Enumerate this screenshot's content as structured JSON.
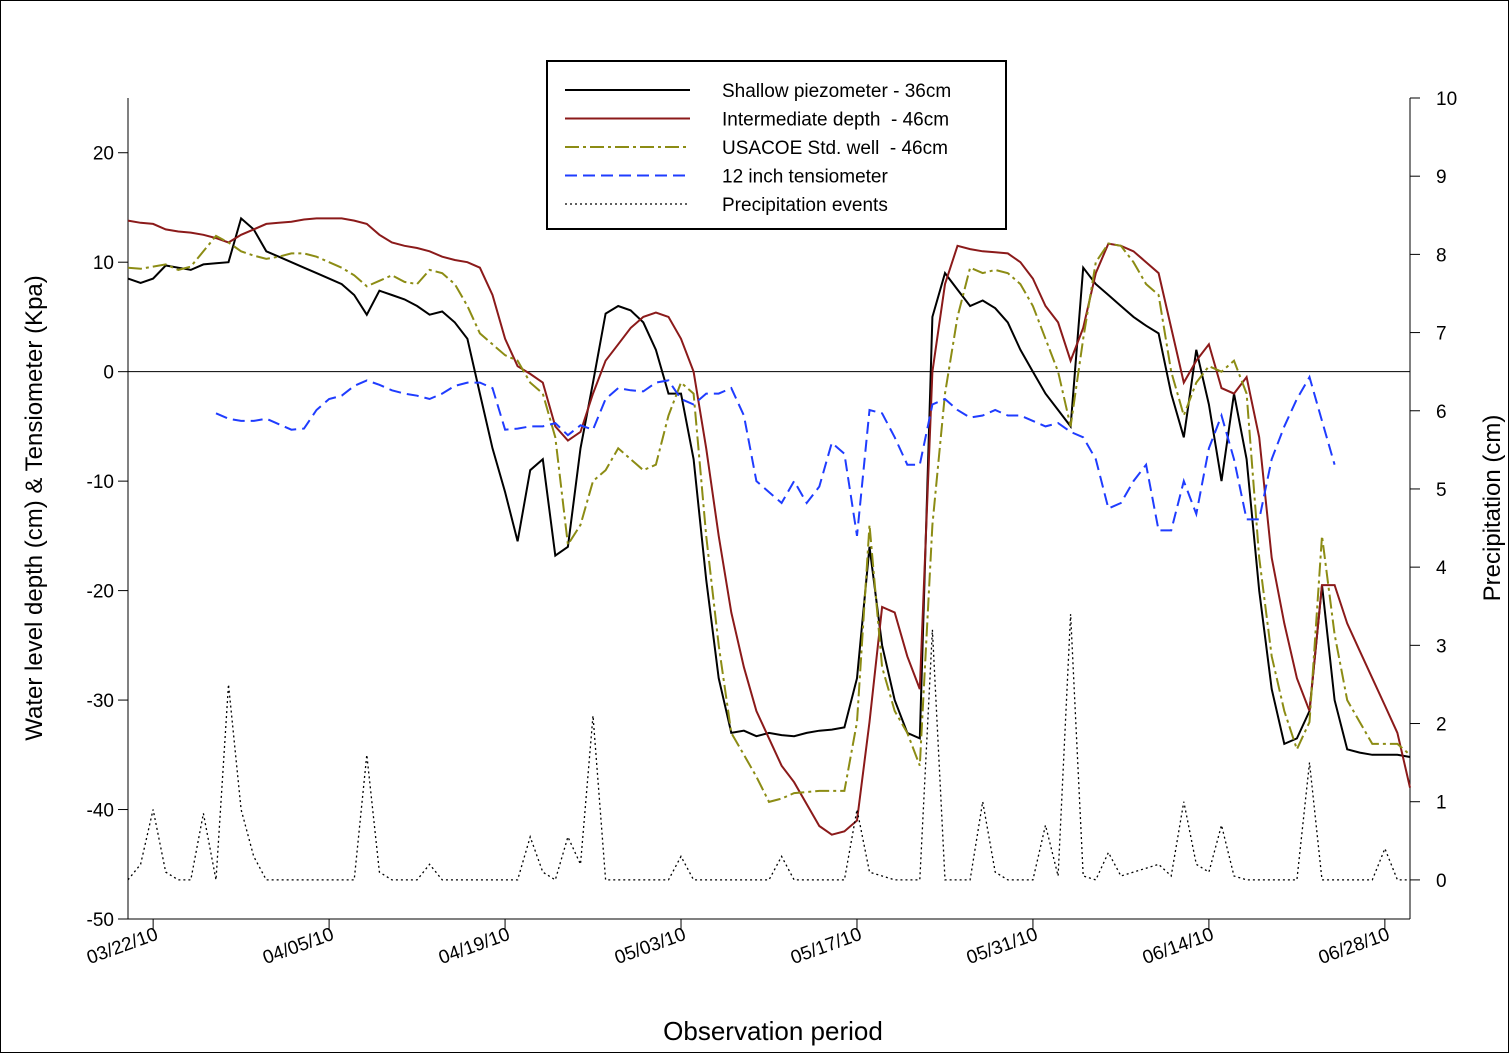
{
  "chart_data": {
    "type": "line",
    "xlabel": "Observation period",
    "ylabel": "Water level depth (cm) & Tensiometer (Kpa)",
    "y2label": "Precipitation (cm)",
    "x": [
      "03/20/10",
      "03/21/10",
      "03/22/10",
      "03/23/10",
      "03/24/10",
      "03/25/10",
      "03/26/10",
      "03/27/10",
      "03/28/10",
      "03/29/10",
      "03/30/10",
      "03/31/10",
      "04/01/10",
      "04/02/10",
      "04/03/10",
      "04/04/10",
      "04/05/10",
      "04/06/10",
      "04/07/10",
      "04/08/10",
      "04/09/10",
      "04/10/10",
      "04/11/10",
      "04/12/10",
      "04/13/10",
      "04/14/10",
      "04/15/10",
      "04/16/10",
      "04/17/10",
      "04/18/10",
      "04/19/10",
      "04/20/10",
      "04/21/10",
      "04/22/10",
      "04/23/10",
      "04/24/10",
      "04/25/10",
      "04/26/10",
      "04/27/10",
      "04/28/10",
      "04/29/10",
      "04/30/10",
      "05/01/10",
      "05/02/10",
      "05/03/10",
      "05/04/10",
      "05/05/10",
      "05/06/10",
      "05/07/10",
      "05/08/10",
      "05/09/10",
      "05/10/10",
      "05/11/10",
      "05/12/10",
      "05/13/10",
      "05/14/10",
      "05/15/10",
      "05/16/10",
      "05/17/10",
      "05/18/10",
      "05/19/10",
      "05/20/10",
      "05/21/10",
      "05/22/10",
      "05/23/10",
      "05/24/10",
      "05/25/10",
      "05/26/10",
      "05/27/10",
      "05/28/10",
      "05/29/10",
      "05/30/10",
      "05/31/10",
      "06/01/10",
      "06/02/10",
      "06/03/10",
      "06/04/10",
      "06/05/10",
      "06/06/10",
      "06/07/10",
      "06/08/10",
      "06/09/10",
      "06/10/10",
      "06/11/10",
      "06/12/10",
      "06/13/10",
      "06/14/10",
      "06/15/10",
      "06/16/10",
      "06/17/10",
      "06/18/10",
      "06/19/10",
      "06/20/10",
      "06/21/10",
      "06/22/10",
      "06/23/10",
      "06/24/10",
      "06/25/10",
      "06/26/10",
      "06/27/10",
      "06/28/10",
      "06/29/10",
      "06/30/10"
    ],
    "xlim": [
      "03/20/10",
      "06/30/10"
    ],
    "xticks": [
      "03/22/10",
      "04/05/10",
      "04/19/10",
      "05/03/10",
      "05/17/10",
      "05/31/10",
      "06/14/10",
      "06/28/10"
    ],
    "ylim": [
      -50,
      25
    ],
    "yticks": [
      -50,
      -40,
      -30,
      -20,
      -10,
      0,
      10,
      20
    ],
    "y2lim": [
      -0.5,
      10
    ],
    "y2ticks": [
      0,
      1,
      2,
      3,
      4,
      5,
      6,
      7,
      8,
      9,
      10
    ],
    "reference_line": 0,
    "series": [
      {
        "name": "Shallow piezometer - 36cm",
        "color": "#000000",
        "style": "solid",
        "values": [
          8.5,
          8.1,
          8.5,
          9.7,
          9.5,
          9.3,
          9.8,
          9.9,
          10,
          14,
          13,
          11,
          10.5,
          10,
          9.5,
          9,
          8.5,
          8,
          7,
          5.2,
          7.4,
          7,
          6.6,
          6,
          5.2,
          5.5,
          4.5,
          3,
          -2,
          -7,
          -11,
          -15.5,
          -9,
          -8,
          -16.8,
          -16,
          -7,
          -1,
          5.3,
          6,
          5.6,
          4.5,
          2,
          -2,
          -2,
          -8,
          -19,
          -28,
          -33,
          -32.8,
          -33.3,
          -33,
          -33.2,
          -33.3,
          -33,
          -32.8,
          -32.7,
          -32.5,
          -28,
          -16,
          -25,
          -30,
          -33,
          -33.5,
          5,
          9,
          7.5,
          6,
          6.5,
          5.8,
          4.5,
          2,
          0,
          -2,
          -3.5,
          -5,
          9.5,
          8,
          7,
          6,
          5,
          4.2,
          3.5,
          -2,
          -6,
          2,
          -3,
          -10,
          -2,
          -8,
          -20,
          -29,
          -34,
          -33.5,
          -31,
          -19.5,
          -30,
          -34.5,
          -34.8,
          -35,
          -35,
          -35,
          -35.2
        ]
      },
      {
        "name": "Intermediate depth  - 46cm",
        "color": "#8b1a1a",
        "style": "solid",
        "values": [
          13.8,
          13.6,
          13.5,
          13,
          12.8,
          12.7,
          12.5,
          12.2,
          11.8,
          12.5,
          13,
          13.5,
          13.6,
          13.7,
          13.9,
          14,
          14,
          14,
          13.8,
          13.5,
          12.5,
          11.8,
          11.5,
          11.3,
          11,
          10.5,
          10.2,
          10,
          9.5,
          7,
          3,
          0.5,
          -0.2,
          -1,
          -5,
          -6.3,
          -5.5,
          -2,
          1,
          2.5,
          4,
          5,
          5.4,
          5,
          3,
          0,
          -7,
          -15,
          -22,
          -27,
          -31,
          -33.5,
          -36,
          -37.5,
          -39.5,
          -41.5,
          -42.3,
          -42,
          -41,
          -32,
          -21.5,
          -22,
          -26,
          -29,
          0,
          8,
          11.5,
          11.2,
          11,
          10.9,
          10.8,
          10,
          8.5,
          6,
          4.5,
          1,
          4,
          9,
          11.7,
          11.5,
          11,
          10,
          9,
          4,
          -1,
          1,
          2.5,
          -1.5,
          -2,
          -0.5,
          -6,
          -17,
          -23,
          -28,
          -31,
          -19.5,
          -19.5,
          -23,
          -25.5,
          -28,
          -30.5,
          -33,
          -38
        ]
      },
      {
        "name": "USACOE Std. well  - 46cm",
        "color": "#8c8c14",
        "style": "dashdot",
        "values": [
          9.5,
          9.4,
          9.6,
          9.8,
          9.3,
          9.6,
          11,
          12.4,
          11.8,
          11,
          10.6,
          10.3,
          10.5,
          10.8,
          10.8,
          10.5,
          10,
          9.5,
          8.8,
          7.8,
          8.3,
          8.8,
          8.2,
          8,
          9.3,
          9,
          8,
          6,
          3.5,
          2.5,
          1.5,
          1,
          -1,
          -2,
          -6,
          -15.8,
          -14,
          -10,
          -9,
          -7,
          -8,
          -9,
          -8.5,
          -4,
          -1,
          -2,
          -15,
          -25,
          -33,
          -35,
          -37,
          -39.3,
          -39,
          -38.5,
          -38.4,
          -38.3,
          -38.3,
          -38.3,
          -32,
          -14,
          -27,
          -31,
          -33,
          -36,
          -14,
          -2,
          5,
          9.5,
          9,
          9.3,
          9,
          8,
          6,
          3,
          0,
          -5,
          3,
          10,
          11.7,
          11.5,
          10,
          8,
          7,
          0,
          -4,
          -1,
          0.5,
          0,
          1,
          -2,
          -17,
          -26,
          -31,
          -34.5,
          -32,
          -15,
          -24,
          -30,
          -32,
          -34,
          -34,
          -34,
          -35
        ]
      },
      {
        "name": "12 inch tensiometer",
        "color": "#1f3cff",
        "style": "dashed",
        "values": [
          null,
          null,
          null,
          null,
          null,
          null,
          null,
          -3.8,
          -4.3,
          -4.5,
          -4.5,
          -4.3,
          -4.8,
          -5.3,
          -5.2,
          -3.5,
          -2.5,
          -2.2,
          -1.3,
          -0.8,
          -1.2,
          -1.7,
          -2,
          -2.2,
          -2.5,
          -2,
          -1.3,
          -1,
          -1,
          -1.5,
          -5.3,
          -5.2,
          -5,
          -5,
          -4.7,
          -5.8,
          -4.9,
          -5.3,
          -2.5,
          -1.5,
          -1.7,
          -1.8,
          -1,
          -0.8,
          -2.5,
          -3,
          -2,
          -2,
          -1.5,
          -4,
          -10,
          -11,
          -12,
          -10,
          -12,
          -10.5,
          -6.5,
          -7.5,
          -15,
          -3.5,
          -3.8,
          -6,
          -8.5,
          -8.5,
          -3,
          -2.5,
          -3.5,
          -4.2,
          -4,
          -3.5,
          -4,
          -4,
          -4.5,
          -5,
          -4.7,
          -5.5,
          -6,
          -8,
          -12.5,
          -12,
          -10,
          -8.5,
          -14.5,
          -14.5,
          -10,
          -13,
          -7,
          -4,
          -8,
          -13.5,
          -13.5,
          -8,
          -5,
          -2.5,
          -0.5,
          -4.5,
          -8.5,
          null,
          null,
          null,
          null,
          null,
          null
        ]
      },
      {
        "name": "Precipitation events",
        "color": "#000000",
        "style": "dotted",
        "axis": "y2",
        "values": [
          0,
          0.2,
          0.9,
          0.1,
          0,
          0,
          0.85,
          0,
          2.5,
          0.9,
          0.3,
          0,
          0,
          0,
          0,
          0,
          0,
          0,
          0,
          1.6,
          0.1,
          0,
          0,
          0,
          0.2,
          0,
          0,
          0,
          0,
          0,
          0,
          0,
          0.55,
          0.1,
          0,
          0.55,
          0.2,
          2.1,
          0,
          0,
          0,
          0,
          0,
          0,
          0.3,
          0,
          0,
          0,
          0,
          0,
          0,
          0,
          0.3,
          0,
          0,
          0,
          0,
          0,
          0.9,
          0.1,
          0.05,
          0,
          0,
          0,
          3.2,
          0,
          0,
          0,
          1.0,
          0.1,
          0,
          0,
          0,
          0.7,
          0.05,
          3.4,
          0.05,
          0,
          0.35,
          0.05,
          0.1,
          0.15,
          0.2,
          0.05,
          1.0,
          0.2,
          0.1,
          0.7,
          0.05,
          0,
          0,
          0,
          0,
          0,
          1.5,
          0,
          0,
          0,
          0,
          0,
          0.4,
          0,
          0
        ]
      }
    ]
  }
}
